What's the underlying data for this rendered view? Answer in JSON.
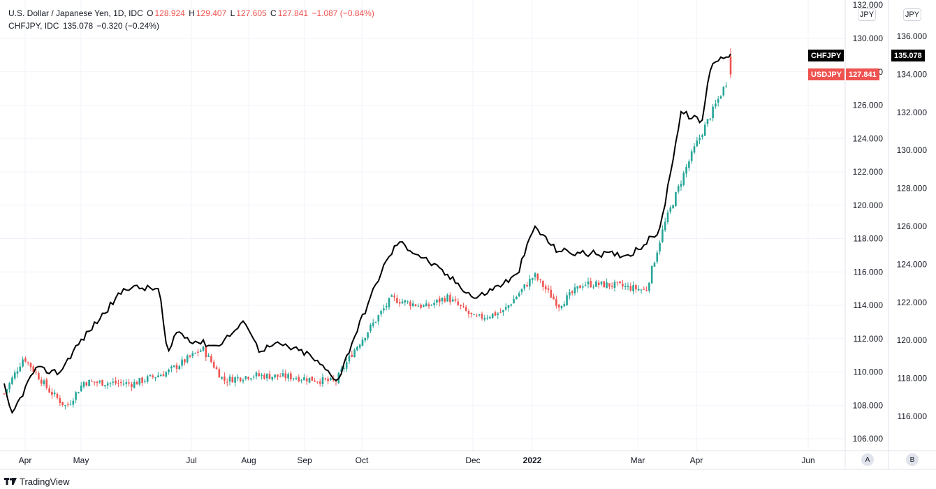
{
  "legend": {
    "usd_title": "U.S. Dollar / Japanese Yen, 1D, IDC",
    "usd_o_label": "O",
    "usd_o": "128.924",
    "usd_h_label": "H",
    "usd_h": "129.407",
    "usd_l_label": "L",
    "usd_l": "127.605",
    "usd_c_label": "C",
    "usd_c": "127.841",
    "usd_chg": "−1.087 (−0.84%)",
    "chf_title": "CHFJPY, IDC",
    "chf_val": "135.078",
    "chf_chg": "−0.320 (−0.24%)"
  },
  "axis_a": {
    "unit": "JPY",
    "labels": [
      "130.000",
      "128.000",
      "126.000",
      "124.000",
      "122.000",
      "120.000",
      "118.000",
      "116.000",
      "114.000",
      "112.000",
      "110.000",
      "108.000",
      "106.000"
    ],
    "top_partial": "132.000"
  },
  "axis_b": {
    "unit": "JPY",
    "labels": [
      "136.000",
      "134.000",
      "132.000",
      "130.000",
      "128.000",
      "126.000",
      "124.000",
      "122.000",
      "120.000",
      "118.000",
      "116.000"
    ]
  },
  "x_labels": [
    "Apr",
    "May",
    "Jul",
    "Aug",
    "Sep",
    "Oct",
    "Dec",
    "2022",
    "Mar",
    "Apr",
    "Jun"
  ],
  "tags": {
    "chf_name": "CHFJPY",
    "chf_price": "135.078",
    "usd_name": "USDJPY",
    "usd_price": "127.841"
  },
  "buttons": {
    "a": "A",
    "b": "B"
  },
  "brand": "TradingView",
  "colors": {
    "up": "#26a69a",
    "down": "#ef5350",
    "line": "#000000",
    "grid": "#f0f3fa"
  },
  "chart_data": {
    "type": "line",
    "series": [
      {
        "name": "USDJPY",
        "kind": "candlestick",
        "scale": "left axis (JPY)",
        "approx_close_path": [
          [
            "Mar 2021",
            108.7
          ],
          [
            "early Apr",
            110.9
          ],
          [
            "mid Apr",
            108.9
          ],
          [
            "late Apr",
            107.9
          ],
          [
            "early May",
            109.4
          ],
          [
            "late May",
            109.3
          ],
          [
            "mid Jun",
            110.0
          ],
          [
            "late Jun",
            110.6
          ],
          [
            "Jul",
            111.4
          ],
          [
            "late Jul",
            109.5
          ],
          [
            "Aug",
            109.8
          ],
          [
            "early Sep",
            109.7
          ],
          [
            "late Sep",
            109.4
          ],
          [
            "early Oct",
            111.2
          ],
          [
            "mid Oct",
            114.4
          ],
          [
            "late Oct",
            113.9
          ],
          [
            "mid Nov",
            114.5
          ],
          [
            "late Nov",
            113.2
          ],
          [
            "mid Dec",
            113.6
          ],
          [
            "early Jan 2022",
            115.8
          ],
          [
            "mid Jan",
            114.0
          ],
          [
            "late Jan",
            115.3
          ],
          [
            "mid Feb",
            115.2
          ],
          [
            "early Mar",
            114.9
          ],
          [
            "mid Mar",
            118.7
          ],
          [
            "late Mar",
            122.0
          ],
          [
            "early Apr",
            123.5
          ],
          [
            "mid Apr",
            126.5
          ],
          [
            "Apr 20 2022",
            127.841
          ]
        ],
        "last": {
          "open": 128.924,
          "high": 129.407,
          "low": 127.605,
          "close": 127.841
        }
      },
      {
        "name": "CHFJPY",
        "kind": "line",
        "scale": "right axis (JPY)",
        "approx_path": [
          [
            "Mar 2021",
            117.6
          ],
          [
            "late Mar",
            116.0
          ],
          [
            "early Apr",
            118.5
          ],
          [
            "mid Apr",
            118.3
          ],
          [
            "early May",
            119.6
          ],
          [
            "mid May",
            120.6
          ],
          [
            "late May",
            122.8
          ],
          [
            "mid Jun",
            122.7
          ],
          [
            "late Jun",
            119.1
          ],
          [
            "early Jul",
            120.5
          ],
          [
            "mid Jul",
            120.0
          ],
          [
            "late Jul",
            119.7
          ],
          [
            "mid Aug",
            121.0
          ],
          [
            "late Aug",
            119.5
          ],
          [
            "early Sep",
            119.8
          ],
          [
            "mid Sep",
            119.3
          ],
          [
            "late Sep",
            117.9
          ],
          [
            "early Oct",
            120.0
          ],
          [
            "mid Oct",
            123.8
          ],
          [
            "late Oct",
            125.2
          ],
          [
            "early Nov",
            124.2
          ],
          [
            "mid Nov",
            123.0
          ],
          [
            "late Nov",
            122.2
          ],
          [
            "mid Dec",
            123.4
          ],
          [
            "early Jan 2022",
            126.0
          ],
          [
            "mid Jan",
            124.8
          ],
          [
            "late Jan",
            124.6
          ],
          [
            "mid Feb",
            124.5
          ],
          [
            "early Mar",
            125.0
          ],
          [
            "mid Mar",
            125.8
          ],
          [
            "late Mar",
            132.0
          ],
          [
            "early Apr",
            131.5
          ],
          [
            "mid Apr",
            134.6
          ],
          [
            "Apr 20 2022",
            135.078
          ]
        ]
      }
    ],
    "x_ticks": [
      "Apr",
      "May",
      "Jul",
      "Aug",
      "Sep",
      "Oct",
      "Dec",
      "2022",
      "Mar",
      "Apr",
      "Jun"
    ],
    "y_left_range": [
      105,
      132
    ],
    "y_right_range": [
      115,
      137
    ],
    "grid": true
  }
}
